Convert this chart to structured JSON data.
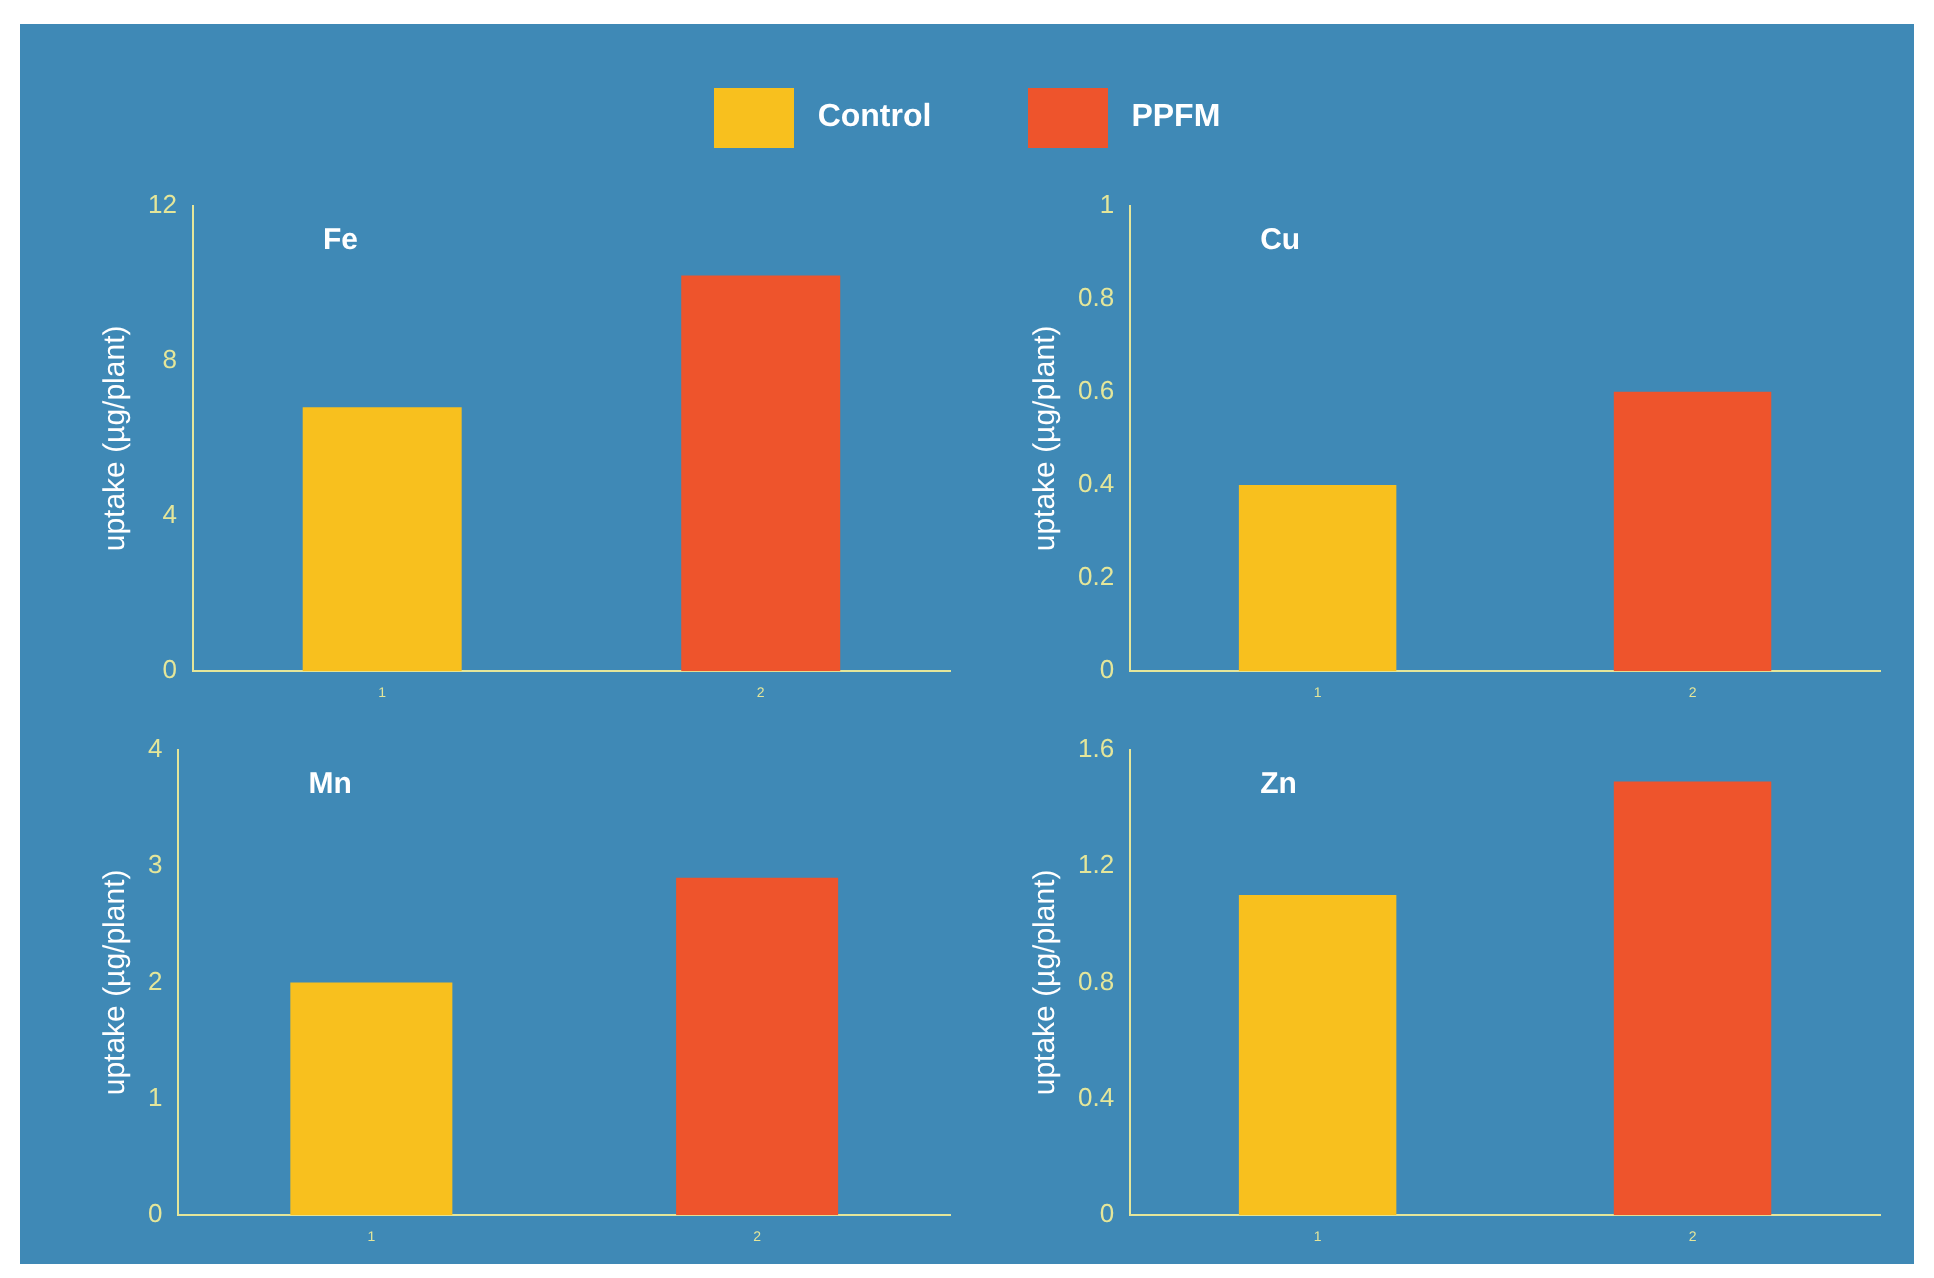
{
  "chart_data": [
    {
      "type": "bar",
      "title": "Fe",
      "ylabel": "uptake (µg/plant)",
      "categories": [
        "1",
        "2"
      ],
      "series": [
        {
          "name": "Control",
          "color": "#f8c01e",
          "values": [
            6.8,
            null
          ]
        },
        {
          "name": "PPFM",
          "color": "#ee542c",
          "values": [
            null,
            10.2
          ]
        }
      ],
      "ylim": [
        0,
        12
      ],
      "yticks": [
        0,
        4,
        8,
        12
      ],
      "grid": false,
      "legend": "top"
    },
    {
      "type": "bar",
      "title": "Cu",
      "ylabel": "uptake (µg/plant)",
      "categories": [
        "1",
        "2"
      ],
      "series": [
        {
          "color": "#f8c01e",
          "values": [
            0.4,
            null
          ]
        },
        {
          "color": "#ee542c",
          "values": [
            null,
            0.6
          ]
        }
      ],
      "ylim": [
        0,
        1
      ],
      "yticks": [
        0,
        0.2,
        0.4,
        0.6,
        0.8,
        1
      ],
      "grid": false
    },
    {
      "type": "bar",
      "title": "Mn",
      "ylabel": "uptake (µg/plant)",
      "categories": [
        "1",
        "2"
      ],
      "series": [
        {
          "color": "#f8c01e",
          "values": [
            2.0,
            null
          ]
        },
        {
          "color": "#ee542c",
          "values": [
            null,
            2.9
          ]
        }
      ],
      "ylim": [
        0,
        4
      ],
      "yticks": [
        0,
        1,
        2,
        3,
        4
      ],
      "grid": false
    },
    {
      "type": "bar",
      "title": "Zn",
      "ylabel": "uptake (µg/plant)",
      "categories": [
        "1",
        "2"
      ],
      "series": [
        {
          "color": "#f8c01e",
          "values": [
            1.1,
            null
          ]
        },
        {
          "color": "#ee542c",
          "values": [
            null,
            1.49
          ]
        }
      ],
      "ylim": [
        0,
        1.6
      ],
      "yticks": [
        0,
        0.4,
        0.8,
        1.2,
        1.6
      ],
      "grid": false
    }
  ]
}
